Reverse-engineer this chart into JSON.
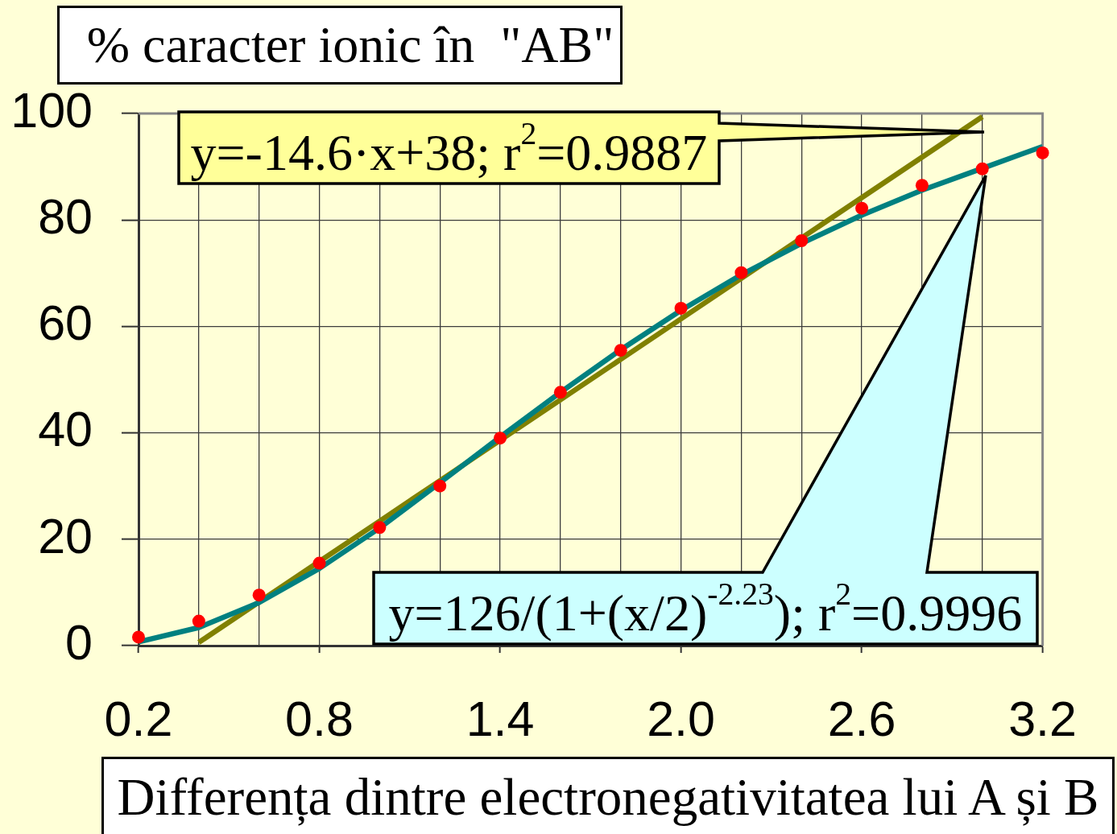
{
  "chart_data": {
    "type": "scatter",
    "ylabel": "% caracter ionic în  \"AB\"",
    "xlabel": "Differența dintre electronegativitatea lui A și B",
    "annotations": [
      "y=-14.6·x+38; r$^{2}$=0.9887",
      "y=126/(1+(x/2)$^{-2.23}$); r$^{2}$=0.9996"
    ],
    "x": [
      0.2,
      0.4,
      0.6,
      0.8,
      1.0,
      1.2,
      1.4,
      1.6,
      1.8,
      2.0,
      2.2,
      2.4,
      2.6,
      2.8,
      3.0,
      3.2
    ],
    "series": [
      {
        "type": "line",
        "color": "#808000",
        "marker": "none",
        "x": [
          0.4,
          0.6,
          0.8,
          1.0,
          1.2,
          1.4,
          1.6,
          1.8,
          2.0,
          2.2,
          2.4,
          2.6,
          2.8,
          3.0
        ],
        "values": [
          0.6,
          8.2,
          15.8,
          23.4,
          31.0,
          38.6,
          46.2,
          53.8,
          61.4,
          69.0,
          76.6,
          84.2,
          91.8,
          99.4
        ]
      },
      {
        "type": "line",
        "color": "#008080",
        "marker": "none",
        "values": [
          0.7,
          3.4,
          8.1,
          14.5,
          22.1,
          30.6,
          39.2,
          47.6,
          55.6,
          63.0,
          69.7,
          75.6,
          80.9,
          85.6,
          89.7,
          93.8
        ]
      },
      {
        "color": "#ff0000",
        "marker": "circle",
        "values": [
          1.6,
          4.6,
          9.5,
          15.5,
          22.2,
          30.0,
          39.0,
          47.6,
          55.5,
          63.4,
          70.1,
          76.1,
          82.2,
          86.5,
          89.6,
          92.6
        ]
      }
    ],
    "xlim": [
      0.2,
      3.2
    ],
    "xticks": [
      0.2,
      {
        "value": 0.4,
        "label": null
      },
      {
        "value": 0.6,
        "label": null
      },
      0.8,
      {
        "value": 1.0,
        "label": null
      },
      {
        "value": 1.2,
        "label": null
      },
      1.4,
      {
        "value": 1.6,
        "label": null
      },
      {
        "value": 1.8,
        "label": null
      },
      {
        "value": 2.0,
        "label": "2.0"
      },
      {
        "value": 2.2,
        "label": null
      },
      {
        "value": 2.4,
        "label": null
      },
      2.6,
      {
        "value": 2.8,
        "label": null
      },
      {
        "value": 3.0,
        "label": null
      },
      3.2
    ],
    "ylim": [
      0,
      100
    ],
    "yticks": [
      0,
      20,
      40,
      60,
      80,
      100
    ],
    "grid": true,
    "legend": false
  }
}
